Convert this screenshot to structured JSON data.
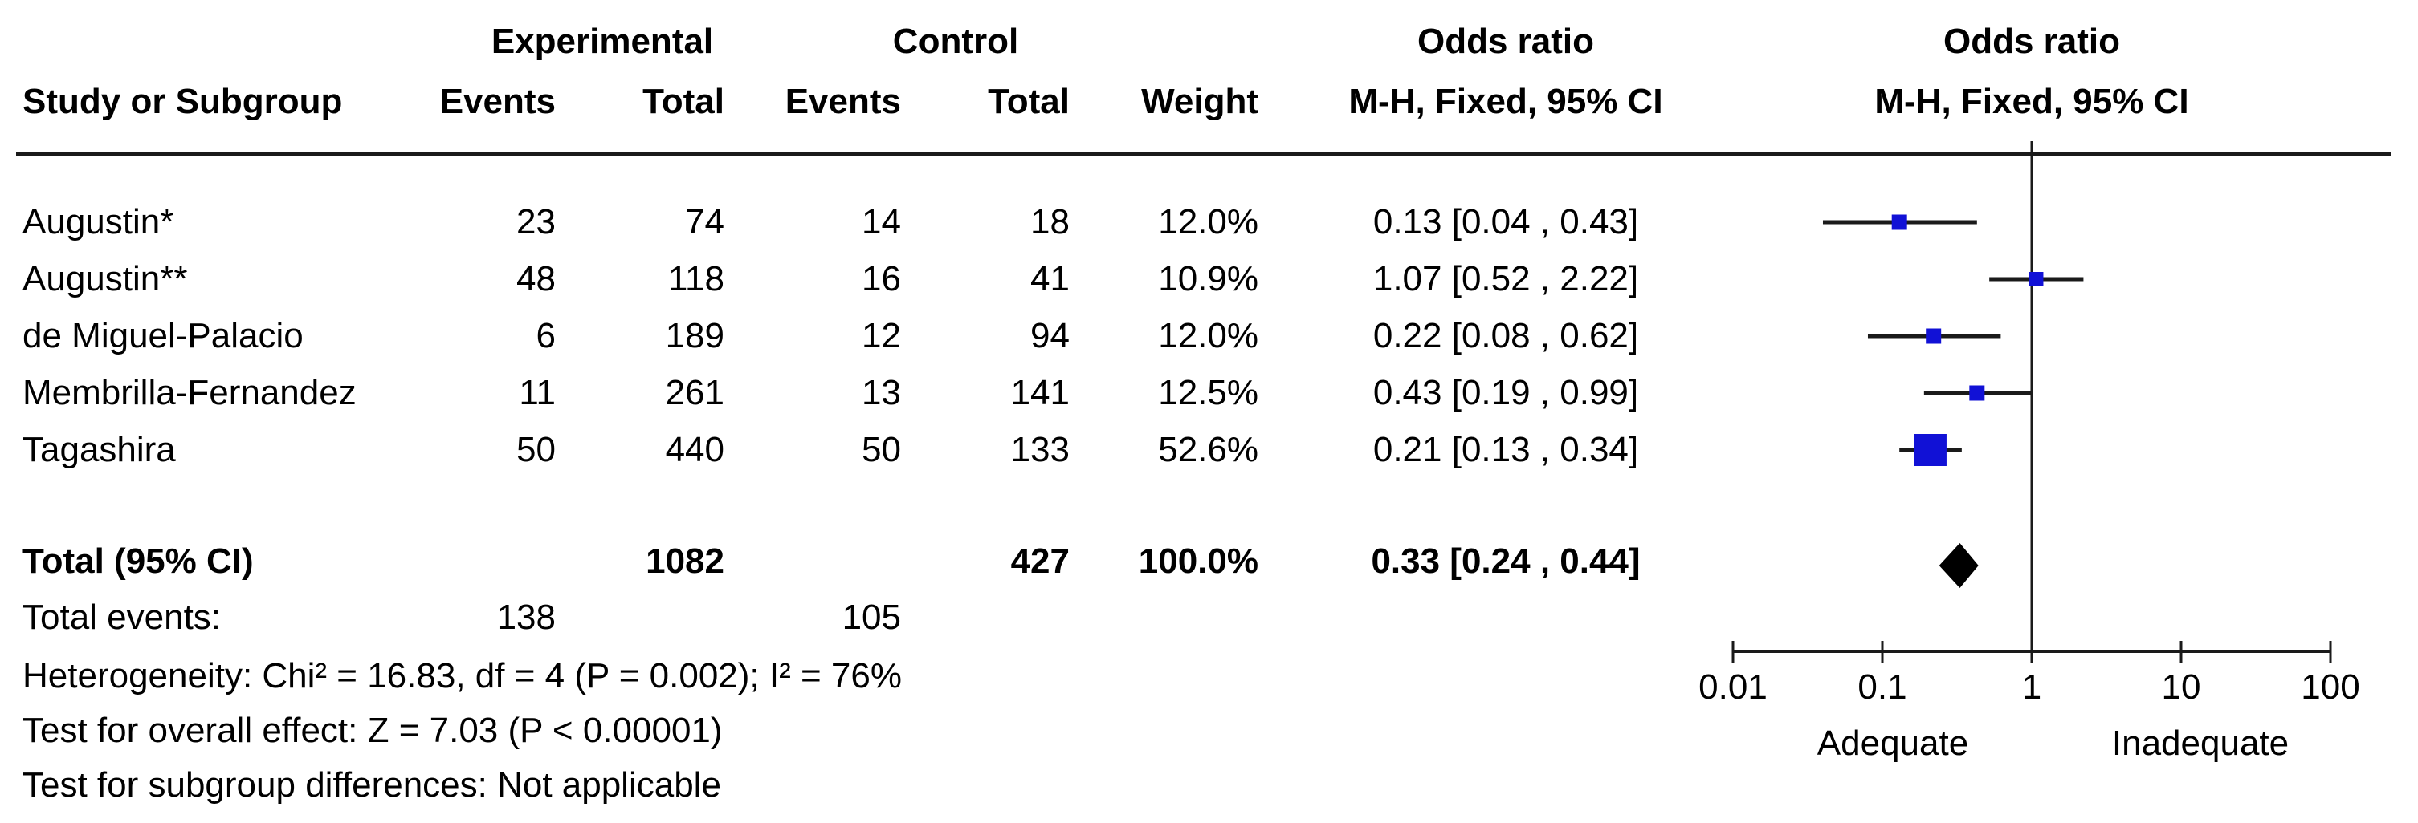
{
  "header": {
    "group_row": {
      "experimental": "Experimental",
      "control": "Control",
      "odds_ratio_left": "Odds ratio",
      "odds_ratio_right": "Odds ratio"
    },
    "column_row": {
      "study": "Study or Subgroup",
      "exp_events": "Events",
      "exp_total": "Total",
      "ctrl_events": "Events",
      "ctrl_total": "Total",
      "weight": "Weight",
      "mh_left": "M-H, Fixed, 95% CI",
      "mh_right": "M-H, Fixed, 95% CI"
    }
  },
  "table": {
    "studies": [
      {
        "name": "Augustin*",
        "exp_events": "23",
        "exp_total": "74",
        "ctrl_events": "14",
        "ctrl_total": "18",
        "weight": "12.0%",
        "or_ci": "0.13 [0.04 , 0.43]"
      },
      {
        "name": "Augustin**",
        "exp_events": "48",
        "exp_total": "118",
        "ctrl_events": "16",
        "ctrl_total": "41",
        "weight": "10.9%",
        "or_ci": "1.07 [0.52 , 2.22]"
      },
      {
        "name": "de Miguel-Palacio",
        "exp_events": "6",
        "exp_total": "189",
        "ctrl_events": "12",
        "ctrl_total": "94",
        "weight": "12.0%",
        "or_ci": "0.22 [0.08 , 0.62]"
      },
      {
        "name": "Membrilla-Fernandez",
        "exp_events": "11",
        "exp_total": "261",
        "ctrl_events": "13",
        "ctrl_total": "141",
        "weight": "12.5%",
        "or_ci": "0.43 [0.19 , 0.99]"
      },
      {
        "name": "Tagashira",
        "exp_events": "50",
        "exp_total": "440",
        "ctrl_events": "50",
        "ctrl_total": "133",
        "weight": "52.6%",
        "or_ci": "0.21 [0.13 , 0.34]"
      }
    ],
    "total_row": {
      "label": "Total (95% CI)",
      "exp_total": "1082",
      "ctrl_total": "427",
      "weight": "100.0%",
      "or_ci": "0.33 [0.24 , 0.44]"
    },
    "total_events_row": {
      "label": "Total events:",
      "exp_events": "138",
      "ctrl_events": "105"
    },
    "footnotes": [
      "Heterogeneity: Chi² = 16.83, df = 4 (P = 0.002); I² = 76%",
      "Test for overall effect: Z = 7.03 (P < 0.00001)",
      "Test for subgroup differences: Not applicable"
    ]
  },
  "chart_data": {
    "type": "scatter",
    "subtype": "forest-plot",
    "effect_measure": "Odds ratio",
    "method": "M-H, Fixed, 95% CI",
    "x_scale": "log10",
    "x_range": [
      0.01,
      100
    ],
    "null_line": 1,
    "x_ticks": [
      0.01,
      0.1,
      1,
      10,
      100
    ],
    "x_tick_labels": [
      "0.01",
      "0.1",
      "1",
      "10",
      "100"
    ],
    "axis_left_label": "Adequate",
    "axis_right_label": "Inadequate",
    "studies": [
      {
        "name": "Augustin*",
        "or": 0.13,
        "ci_low": 0.04,
        "ci_high": 0.43,
        "weight_pct": 12.0
      },
      {
        "name": "Augustin**",
        "or": 1.07,
        "ci_low": 0.52,
        "ci_high": 2.22,
        "weight_pct": 10.9
      },
      {
        "name": "de Miguel-Palacio",
        "or": 0.22,
        "ci_low": 0.08,
        "ci_high": 0.62,
        "weight_pct": 12.0
      },
      {
        "name": "Membrilla-Fernandez",
        "or": 0.43,
        "ci_low": 0.19,
        "ci_high": 0.99,
        "weight_pct": 12.5
      },
      {
        "name": "Tagashira",
        "or": 0.21,
        "ci_low": 0.13,
        "ci_high": 0.34,
        "weight_pct": 52.6
      }
    ],
    "total": {
      "label": "Total (95% CI)",
      "or": 0.33,
      "ci_low": 0.24,
      "ci_high": 0.44,
      "weight_pct": 100.0
    },
    "marker_color": "#1111D6",
    "line_color": "#1a1a1a"
  }
}
